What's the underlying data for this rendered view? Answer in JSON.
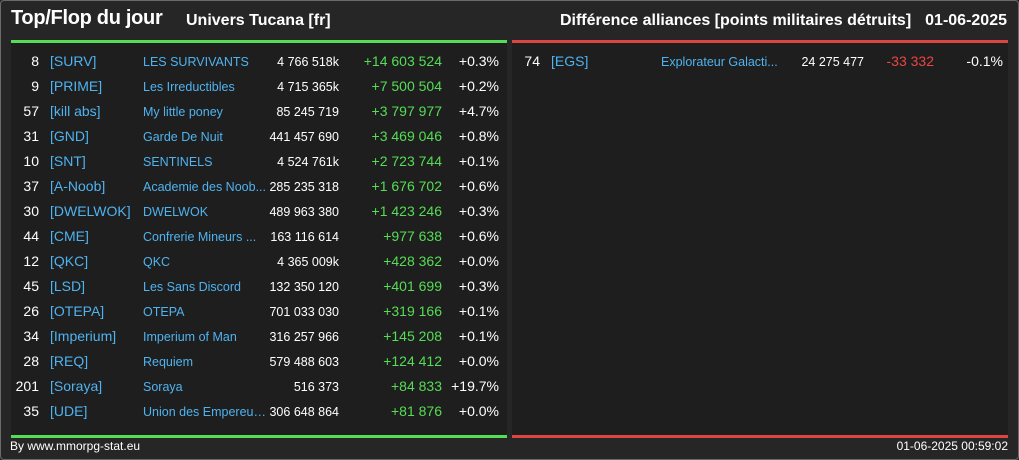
{
  "header": {
    "title": "Top/Flop du jour",
    "universe": "Univers Tucana [fr]",
    "subtitle": "Différence alliances [points militaires détruits]",
    "date": "01-06-2025"
  },
  "colors": {
    "positive": "#55dd55",
    "negative": "#ee4444",
    "link": "#4fb3f0"
  },
  "top": [
    {
      "rank": "8",
      "tag": "[SURV]",
      "name": "LES SURVIVANTS",
      "points": "4 766 518k",
      "diff": "+14 603 524",
      "pct": "+0.3%"
    },
    {
      "rank": "9",
      "tag": "[PRIME]",
      "name": "Les Irreductibles",
      "points": "4 715 365k",
      "diff": "+7 500 504",
      "pct": "+0.2%"
    },
    {
      "rank": "57",
      "tag": "[kill abs]",
      "name": "My little poney",
      "points": "85 245 719",
      "diff": "+3 797 977",
      "pct": "+4.7%"
    },
    {
      "rank": "31",
      "tag": "[GND]",
      "name": "Garde De Nuit",
      "points": "441 457 690",
      "diff": "+3 469 046",
      "pct": "+0.8%"
    },
    {
      "rank": "10",
      "tag": "[SNT]",
      "name": "SENTINELS",
      "points": "4 524 761k",
      "diff": "+2 723 744",
      "pct": "+0.1%"
    },
    {
      "rank": "37",
      "tag": "[A-Noob]",
      "name": "Academie des Noob...",
      "points": "285 235 318",
      "diff": "+1 676 702",
      "pct": "+0.6%"
    },
    {
      "rank": "30",
      "tag": "[DWELWOK]",
      "name": "DWELWOK",
      "points": "489 963 380",
      "diff": "+1 423 246",
      "pct": "+0.3%"
    },
    {
      "rank": "44",
      "tag": "[CME]",
      "name": "Confrerie Mineurs ...",
      "points": "163 116 614",
      "diff": "+977 638",
      "pct": "+0.6%"
    },
    {
      "rank": "12",
      "tag": "[QKC]",
      "name": "QKC",
      "points": "4 365 009k",
      "diff": "+428 362",
      "pct": "+0.0%"
    },
    {
      "rank": "45",
      "tag": "[LSD]",
      "name": "Les Sans Discord",
      "points": "132 350 120",
      "diff": "+401 699",
      "pct": "+0.3%"
    },
    {
      "rank": "26",
      "tag": "[OTEPA]",
      "name": "OTEPA",
      "points": "701 033 030",
      "diff": "+319 166",
      "pct": "+0.1%"
    },
    {
      "rank": "34",
      "tag": "[Imperium]",
      "name": "Imperium of Man",
      "points": "316 257 966",
      "diff": "+145 208",
      "pct": "+0.1%"
    },
    {
      "rank": "28",
      "tag": "[REQ]",
      "name": "Requiem",
      "points": "579 488 603",
      "diff": "+124 412",
      "pct": "+0.0%"
    },
    {
      "rank": "201",
      "tag": "[Soraya]",
      "name": "Soraya",
      "points": "516 373",
      "diff": "+84 833",
      "pct": "+19.7%"
    },
    {
      "rank": "35",
      "tag": "[UDE]",
      "name": "Union des Empereur...",
      "points": "306 648 864",
      "diff": "+81 876",
      "pct": "+0.0%"
    }
  ],
  "flop": [
    {
      "rank": "74",
      "tag": "[EGS]",
      "name": "Explorateur Galacti...",
      "points": "24 275 477",
      "diff": "-33 332",
      "pct": "-0.1%"
    }
  ],
  "footer": {
    "source": "By www.mmorpg-stat.eu",
    "timestamp": "01-06-2025 00:59:02"
  }
}
